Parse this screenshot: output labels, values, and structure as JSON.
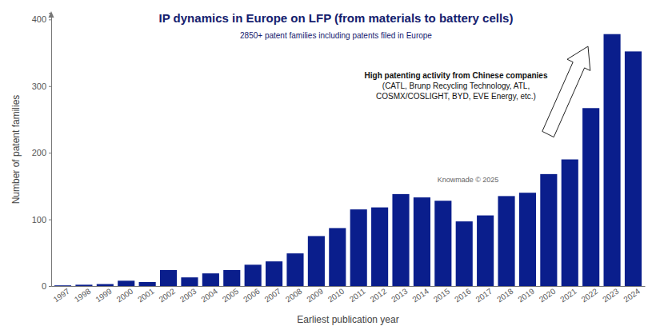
{
  "chart_data": {
    "type": "bar",
    "title": "IP dynamics in Europe on LFP (from materials to battery cells)",
    "subtitle": "2850+ patent families including patents filed in Europe",
    "annotations": [
      "High patenting activity from Chinese companies",
      "(CATL, Brunp Recycling Technology, ATL,",
      "COSMX/COSLIGHT, BYD, EVE Energy, etc.)"
    ],
    "watermark": "Knowmade © 2025",
    "x_label": "Earliest publication year",
    "y_label": "Number of patent families",
    "categories": [
      "1997",
      "1998",
      "1999",
      "2000",
      "2001",
      "2002",
      "2003",
      "2004",
      "2005",
      "2006",
      "2007",
      "2008",
      "2009",
      "2010",
      "2011",
      "2012",
      "2013",
      "2014",
      "2015",
      "2016",
      "2017",
      "2018",
      "2019",
      "2020",
      "2021",
      "2022",
      "2023",
      "2024"
    ],
    "values": [
      1,
      2,
      3,
      8,
      6,
      24,
      13,
      19,
      24,
      32,
      37,
      49,
      75,
      87,
      115,
      118,
      138,
      133,
      128,
      97,
      106,
      135,
      140,
      168,
      190,
      267,
      378,
      352
    ],
    "color": "#0a1e8c",
    "ylim": [
      0,
      410
    ],
    "yticks": [
      0,
      100,
      200,
      300,
      400
    ],
    "grid": false
  }
}
